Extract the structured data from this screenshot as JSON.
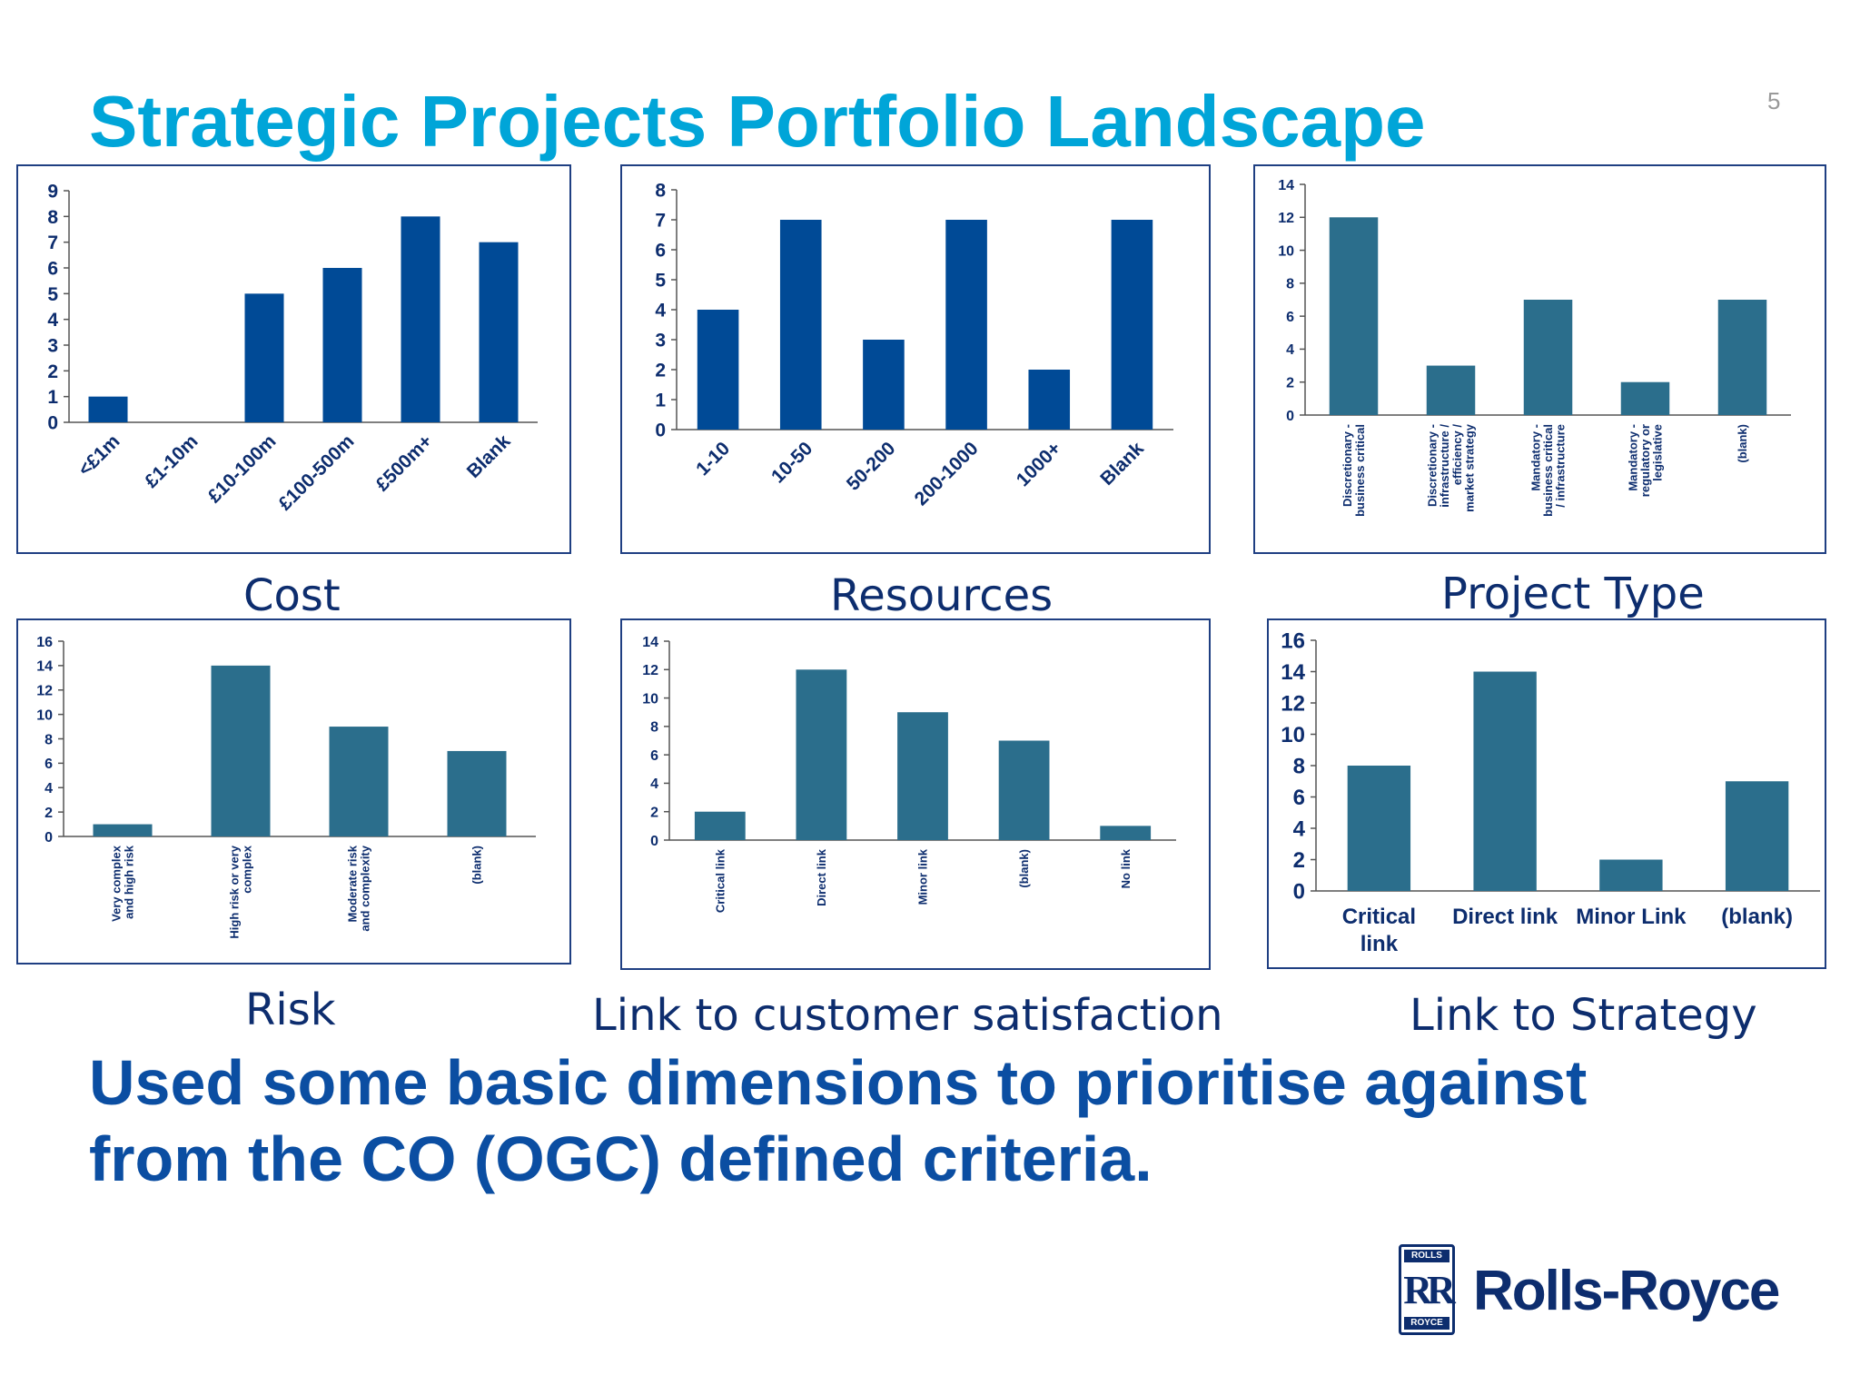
{
  "slide": {
    "title": "Strategic Projects Portfolio Landscape",
    "page_number": "5",
    "footer_line1": "Used some basic dimensions to prioritise against",
    "footer_line2": "from the CO (OGC) defined criteria.",
    "logo_text": "Rolls-Royce",
    "logo_badge_top": "ROLLS",
    "logo_badge_mid": "RR",
    "logo_badge_bottom": "ROYCE"
  },
  "colors": {
    "dark_blue": "#004a96",
    "teal_blue": "#2b6e8c",
    "title_blue": "#00a5d8"
  },
  "chart_data": [
    {
      "id": "cost",
      "type": "bar",
      "caption": "Cost",
      "categories": [
        "<£1m",
        "£1-10m",
        "£10-100m",
        "£100-500m",
        "£500m+",
        "Blank"
      ],
      "values": [
        1,
        0,
        5,
        6,
        8,
        7
      ],
      "ylim": [
        0,
        9
      ],
      "yticks": [
        0,
        1,
        2,
        3,
        4,
        5,
        6,
        7,
        8,
        9
      ],
      "color": "#004a96",
      "label_style": "diagonal"
    },
    {
      "id": "resources",
      "type": "bar",
      "caption": "Resources",
      "categories": [
        "1-10",
        "10-50",
        "50-200",
        "200-1000",
        "1000+",
        "Blank"
      ],
      "values": [
        4,
        7,
        3,
        7,
        2,
        7
      ],
      "ylim": [
        0,
        8
      ],
      "yticks": [
        0,
        1,
        2,
        3,
        4,
        5,
        6,
        7,
        8
      ],
      "color": "#004a96",
      "label_style": "diagonal"
    },
    {
      "id": "project-type",
      "type": "bar",
      "caption": "Project Type",
      "categories": [
        [
          "Discretionary -",
          "business critical"
        ],
        [
          "Discretionary -",
          "infrastructure /",
          "efficiency /",
          "market strategy"
        ],
        [
          "Mandatory -",
          "business critical",
          "/ infrastructure"
        ],
        [
          "Mandatory -",
          "regulatory or",
          "legislative"
        ],
        [
          "(blank)"
        ]
      ],
      "values": [
        12,
        3,
        7,
        2,
        7
      ],
      "ylim": [
        0,
        14
      ],
      "yticks": [
        0,
        2,
        4,
        6,
        8,
        10,
        12,
        14
      ],
      "color": "#2b6e8c",
      "label_style": "vertical"
    },
    {
      "id": "risk",
      "type": "bar",
      "caption": "Risk",
      "categories": [
        [
          "Very complex",
          "and high risk"
        ],
        [
          "High risk or very",
          "complex"
        ],
        [
          "Moderate risk",
          "and complexity"
        ],
        [
          "(blank)"
        ]
      ],
      "values": [
        1,
        14,
        9,
        7
      ],
      "ylim": [
        0,
        16
      ],
      "yticks": [
        0,
        2,
        4,
        6,
        8,
        10,
        12,
        14,
        16
      ],
      "color": "#2b6e8c",
      "label_style": "vertical"
    },
    {
      "id": "customer-satisfaction",
      "type": "bar",
      "caption": "Link to customer satisfaction",
      "categories": [
        [
          "Critical link"
        ],
        [
          "Direct link"
        ],
        [
          "Minor link"
        ],
        [
          "(blank)"
        ],
        [
          "No link"
        ]
      ],
      "values": [
        2,
        12,
        9,
        7,
        1
      ],
      "ylim": [
        0,
        14
      ],
      "yticks": [
        0,
        2,
        4,
        6,
        8,
        10,
        12,
        14
      ],
      "color": "#2b6e8c",
      "label_style": "vertical"
    },
    {
      "id": "strategy",
      "type": "bar",
      "caption": "Link to Strategy",
      "categories": [
        [
          "Critical",
          "link"
        ],
        [
          "Direct link"
        ],
        [
          "Minor Link"
        ],
        [
          "(blank)"
        ]
      ],
      "values": [
        8,
        14,
        2,
        7
      ],
      "ylim": [
        0,
        16
      ],
      "yticks": [
        0,
        2,
        4,
        6,
        8,
        10,
        12,
        14,
        16
      ],
      "color": "#2b6e8c",
      "label_style": "horizontal"
    }
  ]
}
